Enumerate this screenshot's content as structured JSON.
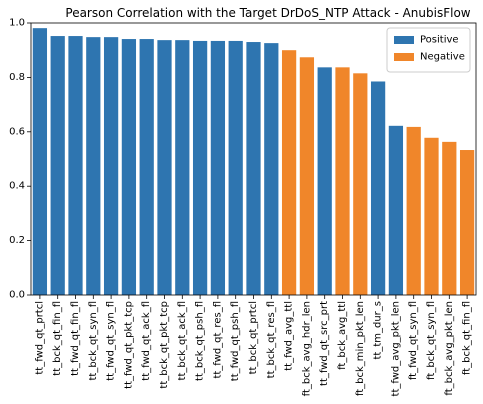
{
  "chart_data": {
    "type": "bar",
    "title": "Pearson Correlation with the Target DrDoS_NTP Attack - AnubisFlow",
    "xlabel": "",
    "ylabel": "",
    "ylim": [
      0,
      1.0
    ],
    "yticks": [
      "0.0",
      "0.2",
      "0.4",
      "0.6",
      "0.8",
      "1.0"
    ],
    "grid": false,
    "legend_position": "top-right",
    "legend": [
      {
        "name": "Positive",
        "color": "#2e75b0"
      },
      {
        "name": "Negative",
        "color": "#f0862a"
      }
    ],
    "bars": [
      {
        "label": "tt_fwd_qt_prtcl",
        "value": 0.981,
        "sign": "Positive"
      },
      {
        "label": "tt_bck_qt_fin_fl",
        "value": 0.952,
        "sign": "Positive"
      },
      {
        "label": "tt_fwd_qt_fin_fl",
        "value": 0.952,
        "sign": "Positive"
      },
      {
        "label": "tt_bck_qt_syn_fl",
        "value": 0.948,
        "sign": "Positive"
      },
      {
        "label": "tt_fwd_qt_syn_fl",
        "value": 0.948,
        "sign": "Positive"
      },
      {
        "label": "tt_fwd_qt_pkt_tcp",
        "value": 0.941,
        "sign": "Positive"
      },
      {
        "label": "tt_fwd_qt_ack_fl",
        "value": 0.941,
        "sign": "Positive"
      },
      {
        "label": "tt_bck_qt_pkt_tcp",
        "value": 0.937,
        "sign": "Positive"
      },
      {
        "label": "tt_bck_qt_ack_fl",
        "value": 0.937,
        "sign": "Positive"
      },
      {
        "label": "tt_bck_qt_psh_fl",
        "value": 0.934,
        "sign": "Positive"
      },
      {
        "label": "tt_fwd_qt_res_fl",
        "value": 0.934,
        "sign": "Positive"
      },
      {
        "label": "tt_fwd_qt_psh_fl",
        "value": 0.934,
        "sign": "Positive"
      },
      {
        "label": "tt_bck_qt_prtcl",
        "value": 0.93,
        "sign": "Positive"
      },
      {
        "label": "tt_bck_qt_res_fl",
        "value": 0.926,
        "sign": "Positive"
      },
      {
        "label": "tt_fwd_avg_ttl",
        "value": 0.9,
        "sign": "Negative"
      },
      {
        "label": "ft_bck_avg_hdr_len",
        "value": 0.874,
        "sign": "Negative"
      },
      {
        "label": "tt_fwd_qt_src_prt",
        "value": 0.837,
        "sign": "Positive"
      },
      {
        "label": "ft_bck_avg_ttl",
        "value": 0.837,
        "sign": "Negative"
      },
      {
        "label": "ft_bck_min_pkt_len",
        "value": 0.815,
        "sign": "Negative"
      },
      {
        "label": "tt_tm_dur_s",
        "value": 0.785,
        "sign": "Positive"
      },
      {
        "label": "tt_fwd_avg_pkt_len",
        "value": 0.622,
        "sign": "Positive"
      },
      {
        "label": "ft_fwd_qt_syn_fl",
        "value": 0.618,
        "sign": "Negative"
      },
      {
        "label": "ft_bck_qt_syn_fl",
        "value": 0.578,
        "sign": "Negative"
      },
      {
        "label": "ft_bck_avg_pkt_len",
        "value": 0.563,
        "sign": "Negative"
      },
      {
        "label": "ft_bck_qt_fin_fl",
        "value": 0.533,
        "sign": "Negative"
      }
    ]
  }
}
